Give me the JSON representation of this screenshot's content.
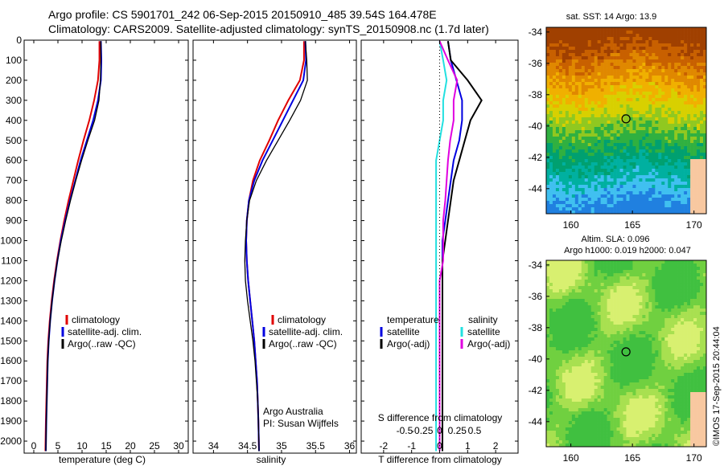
{
  "header": {
    "line1": "Argo profile: CS 5901701_242 06-Sep-2015 20150910_485 39.54S 164.478E",
    "line2": "Climatology: CARS2009. Satellite-adjusted climatology: synTS_20150908.nc (1.7d later)"
  },
  "panels": {
    "temperature": {
      "xlabel": "temperature (deg C)",
      "xticks": [
        0,
        5,
        10,
        15,
        20,
        25,
        30
      ],
      "xlim": [
        -2,
        32
      ],
      "legend": [
        "climatology",
        "satellite-adj. clim.",
        "Argo(..raw -QC)"
      ]
    },
    "salinity": {
      "xlabel": "salinity",
      "xticks": [
        "34",
        "34.5",
        "35",
        "35.5",
        "36"
      ],
      "xlim": [
        33.7,
        36.1
      ],
      "legend": [
        "climatology",
        "satellite-adj. clim.",
        "Argo(..raw -QC)"
      ],
      "credit1": "Argo Australia",
      "credit2": "PI: Susan Wijffels"
    },
    "difference": {
      "xlabel": "T difference from climatology",
      "xticks": [
        "-2",
        "-1",
        "0",
        "1",
        "2"
      ],
      "xlim": [
        -2.8,
        2.8
      ],
      "top_label": "S difference from climatology",
      "top_ticks": [
        "-0.5",
        "-0.25",
        "0",
        "0.25",
        "0.5"
      ],
      "legend_t_head": "temperature",
      "legend_s_head": "salinity",
      "legend_t": [
        "satellite",
        "Argo(-adj)"
      ],
      "legend_s": [
        "satellite",
        "Argo(-adj)"
      ]
    }
  },
  "depth_axis": {
    "ticks": [
      0,
      100,
      200,
      300,
      400,
      500,
      600,
      700,
      800,
      900,
      1000,
      1100,
      1200,
      1300,
      1400,
      1500,
      1600,
      1700,
      1800,
      1900,
      2000
    ],
    "ylim": [
      0,
      2060
    ]
  },
  "maps": {
    "sst_title": "sat. SST: 14 Argo: 13.9",
    "sla_title1": "Altim. SLA: 0.096",
    "sla_title2": "Argo h1000: 0.019 h2000: 0.047",
    "lat_ticks": [
      "-34",
      "-36",
      "-38",
      "-40",
      "-42",
      "-44"
    ],
    "lon_ticks": [
      "160",
      "165",
      "170"
    ],
    "marker": {
      "lon": 164.478,
      "lat": -39.54
    }
  },
  "stamp": "©IMOS 17-Sep-2015 20:44:04",
  "colors": {
    "climatology": "#e00000",
    "satellite": "#0000e0",
    "argo": "#000000",
    "sat_s": "#22e0e0",
    "argo_s": "#e000e0",
    "land": "#f8c8a0"
  },
  "chart_data": [
    {
      "type": "line",
      "title": "",
      "xlabel": "temperature (deg C)",
      "ylabel": "",
      "xlim": [
        -2,
        32
      ],
      "ylim": [
        2060,
        0
      ],
      "series": [
        {
          "name": "climatology",
          "x": [
            13.6,
            13.6,
            13.3,
            12.5,
            11.5,
            10.3,
            9.2,
            8.2,
            7.2,
            6.3,
            5.5,
            4.8,
            4.2,
            3.7,
            3.3,
            3.0,
            2.8,
            2.7,
            2.6,
            2.5,
            2.4
          ],
          "y": [
            5,
            100,
            200,
            300,
            400,
            500,
            600,
            700,
            800,
            900,
            1000,
            1100,
            1200,
            1300,
            1400,
            1500,
            1600,
            1700,
            1800,
            1900,
            2050
          ]
        },
        {
          "name": "satellite-adj. clim.",
          "x": [
            13.9,
            14.0,
            13.9,
            13.3,
            12.3,
            11.0,
            9.7,
            8.6,
            7.5,
            6.5,
            5.6,
            4.9,
            4.3,
            3.8,
            3.4,
            3.1,
            2.9,
            2.8,
            2.7,
            2.6,
            2.5
          ],
          "y": [
            5,
            100,
            200,
            300,
            400,
            500,
            600,
            700,
            800,
            900,
            1000,
            1100,
            1200,
            1300,
            1400,
            1500,
            1600,
            1700,
            1800,
            1900,
            2050
          ]
        },
        {
          "name": "Argo(..raw -QC)",
          "x": [
            13.9,
            13.9,
            13.8,
            13.5,
            12.6,
            11.2,
            9.9,
            8.7,
            7.6,
            6.6,
            5.7,
            4.9,
            4.3,
            3.8,
            3.4,
            3.1,
            2.9,
            2.8,
            2.7,
            2.6,
            2.5
          ],
          "y": [
            5,
            100,
            200,
            300,
            400,
            500,
            600,
            700,
            800,
            900,
            1000,
            1100,
            1200,
            1300,
            1400,
            1500,
            1600,
            1700,
            1800,
            1900,
            2050
          ]
        }
      ]
    },
    {
      "type": "line",
      "title": "",
      "xlabel": "salinity",
      "ylabel": "",
      "xlim": [
        33.7,
        36.1
      ],
      "ylim": [
        2060,
        0
      ],
      "series": [
        {
          "name": "climatology",
          "x": [
            35.33,
            35.33,
            35.27,
            35.1,
            34.95,
            34.82,
            34.68,
            34.58,
            34.52,
            34.49,
            34.48,
            34.49,
            34.51,
            34.54,
            34.57,
            34.6,
            34.62,
            34.64,
            34.65,
            34.66,
            34.67
          ],
          "y": [
            5,
            100,
            200,
            300,
            400,
            500,
            600,
            700,
            800,
            900,
            1000,
            1100,
            1200,
            1300,
            1400,
            1500,
            1600,
            1700,
            1800,
            1900,
            2050
          ]
        },
        {
          "name": "satellite-adj. clim.",
          "x": [
            35.35,
            35.36,
            35.32,
            35.17,
            35.02,
            34.87,
            34.72,
            34.6,
            34.52,
            34.49,
            34.48,
            34.49,
            34.51,
            34.54,
            34.57,
            34.6,
            34.62,
            34.64,
            34.65,
            34.66,
            34.67
          ],
          "y": [
            5,
            100,
            200,
            300,
            400,
            500,
            600,
            700,
            800,
            900,
            1000,
            1100,
            1200,
            1300,
            1400,
            1500,
            1600,
            1700,
            1800,
            1900,
            2050
          ]
        },
        {
          "name": "Argo(..raw -QC)",
          "x": [
            35.35,
            35.37,
            35.38,
            35.28,
            35.12,
            34.95,
            34.78,
            34.63,
            34.53,
            34.49,
            34.47,
            34.46,
            34.47,
            34.5,
            34.54,
            34.58,
            34.61,
            34.63,
            34.65,
            34.66,
            34.67
          ],
          "y": [
            5,
            100,
            200,
            300,
            400,
            500,
            600,
            700,
            800,
            900,
            1000,
            1100,
            1200,
            1300,
            1400,
            1500,
            1600,
            1700,
            1800,
            1900,
            2050
          ]
        }
      ]
    },
    {
      "type": "line",
      "title": "",
      "xlabel": "T difference from climatology",
      "ylabel": "",
      "xlim": [
        -2.8,
        2.8
      ],
      "ylim": [
        2060,
        0
      ],
      "series": [
        {
          "name": "temperature satellite",
          "x": [
            0.3,
            0.4,
            0.6,
            0.8,
            0.8,
            0.7,
            0.5,
            0.4,
            0.3,
            0.2,
            0.1,
            0.1,
            0.1,
            0.1,
            0.1,
            0.1,
            0.1,
            0.1,
            0.1,
            0.1,
            0.1
          ],
          "y": [
            5,
            100,
            200,
            300,
            400,
            500,
            600,
            700,
            800,
            900,
            1000,
            1100,
            1200,
            1300,
            1400,
            1500,
            1600,
            1700,
            1800,
            1900,
            2050
          ]
        },
        {
          "name": "temperature Argo(-adj)",
          "x": [
            0.3,
            0.4,
            1.0,
            1.5,
            1.1,
            0.9,
            0.7,
            0.5,
            0.4,
            0.3,
            0.2,
            0.1,
            0.1,
            0.1,
            0.1,
            0.1,
            0.1,
            0.1,
            0.1,
            0.1,
            0.1
          ],
          "y": [
            5,
            100,
            200,
            300,
            400,
            500,
            600,
            700,
            800,
            900,
            1000,
            1100,
            1200,
            1300,
            1400,
            1500,
            1600,
            1700,
            1800,
            1900,
            2050
          ]
        },
        {
          "name": "salinity satellite",
          "x": [
            0.0,
            0.05,
            0.1,
            0.05,
            0.05,
            0.0,
            -0.05,
            -0.05,
            -0.05,
            -0.05,
            -0.05,
            -0.05,
            -0.05,
            -0.05,
            -0.05,
            -0.05,
            -0.05,
            -0.05,
            -0.05,
            -0.05,
            -0.05
          ],
          "y": [
            5,
            100,
            200,
            300,
            400,
            500,
            600,
            700,
            800,
            900,
            1000,
            1100,
            1200,
            1300,
            1400,
            1500,
            1600,
            1700,
            1800,
            1900,
            2050
          ]
        },
        {
          "name": "salinity Argo(-adj)",
          "x": [
            0.0,
            0.12,
            0.25,
            0.2,
            0.2,
            0.15,
            0.12,
            0.1,
            0.08,
            0.05,
            0.05,
            0.05,
            0.0,
            0.0,
            0.0,
            0.0,
            0.0,
            0.0,
            0.0,
            0.0,
            0.0
          ],
          "y": [
            5,
            100,
            200,
            300,
            400,
            500,
            600,
            700,
            800,
            900,
            1000,
            1100,
            1200,
            1300,
            1400,
            1500,
            1600,
            1700,
            1800,
            1900,
            2050
          ]
        }
      ]
    }
  ]
}
